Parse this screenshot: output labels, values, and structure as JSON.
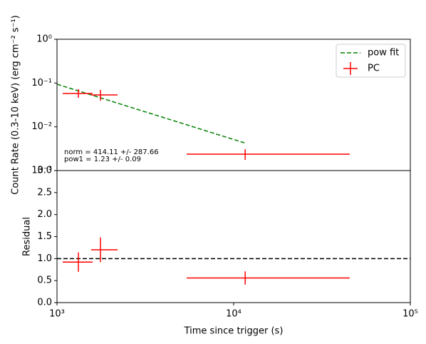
{
  "chart_data": [
    {
      "type": "errorbar",
      "ylabel": "Count Rate (0.3-10 keV) (erg cm⁻² s⁻¹)",
      "log_x": true,
      "log_y": true,
      "xlim": [
        1000,
        100000
      ],
      "ylim": [
        0.001,
        1
      ],
      "yticks": [
        {
          "value": 1,
          "label": "10⁰"
        },
        {
          "value": 0.1,
          "label": "10⁻¹"
        },
        {
          "value": 0.01,
          "label": "10⁻²"
        },
        {
          "value": 0.001,
          "label": "10⁻³"
        }
      ],
      "legend": "upper right",
      "annotations": [
        "norm = 414.11 +/- 287.66",
        "pow1 = 1.23 +/- 0.09"
      ],
      "series": [
        {
          "name": "pow fit",
          "color": "green",
          "style": "dashed",
          "x": [
            1000,
            11500
          ],
          "values": [
            0.094,
            0.0043
          ]
        },
        {
          "name": "PC",
          "color": "red",
          "x": [
            1322,
            1763,
            11620
          ],
          "x_lo": [
            1077,
            1561,
            5420
          ],
          "x_hi": [
            1591,
            2203,
            45400
          ],
          "values": [
            0.0577,
            0.0535,
            0.00237
          ],
          "y_lo": [
            0.046,
            0.0396,
            0.00175
          ],
          "y_hi": [
            0.0722,
            0.0698,
            0.00308
          ]
        }
      ]
    },
    {
      "type": "errorbar",
      "xlabel": "Time since trigger (s)",
      "ylabel": "Residual",
      "log_x": true,
      "xlim": [
        1000,
        100000
      ],
      "ylim": [
        0,
        3
      ],
      "xticks": [
        {
          "value": 1000,
          "label": "10³"
        },
        {
          "value": 10000,
          "label": "10⁴"
        },
        {
          "value": 100000,
          "label": "10⁵"
        }
      ],
      "yticks": [
        {
          "value": 0,
          "label": "0.0"
        },
        {
          "value": 0.5,
          "label": "0.5"
        },
        {
          "value": 1,
          "label": "1.0"
        },
        {
          "value": 1.5,
          "label": "1.5"
        },
        {
          "value": 2,
          "label": "2.0"
        },
        {
          "value": 2.5,
          "label": "2.5"
        },
        {
          "value": 3,
          "label": "3.0"
        }
      ],
      "hline": 1,
      "series": [
        {
          "name": "PC",
          "color": "red",
          "x": [
            1322,
            1763,
            11620
          ],
          "x_lo": [
            1077,
            1561,
            5420
          ],
          "x_hi": [
            1591,
            2203,
            45400
          ],
          "values": [
            0.92,
            1.2,
            0.56
          ],
          "yerr": [
            0.22,
            0.28,
            0.15
          ]
        }
      ]
    }
  ]
}
